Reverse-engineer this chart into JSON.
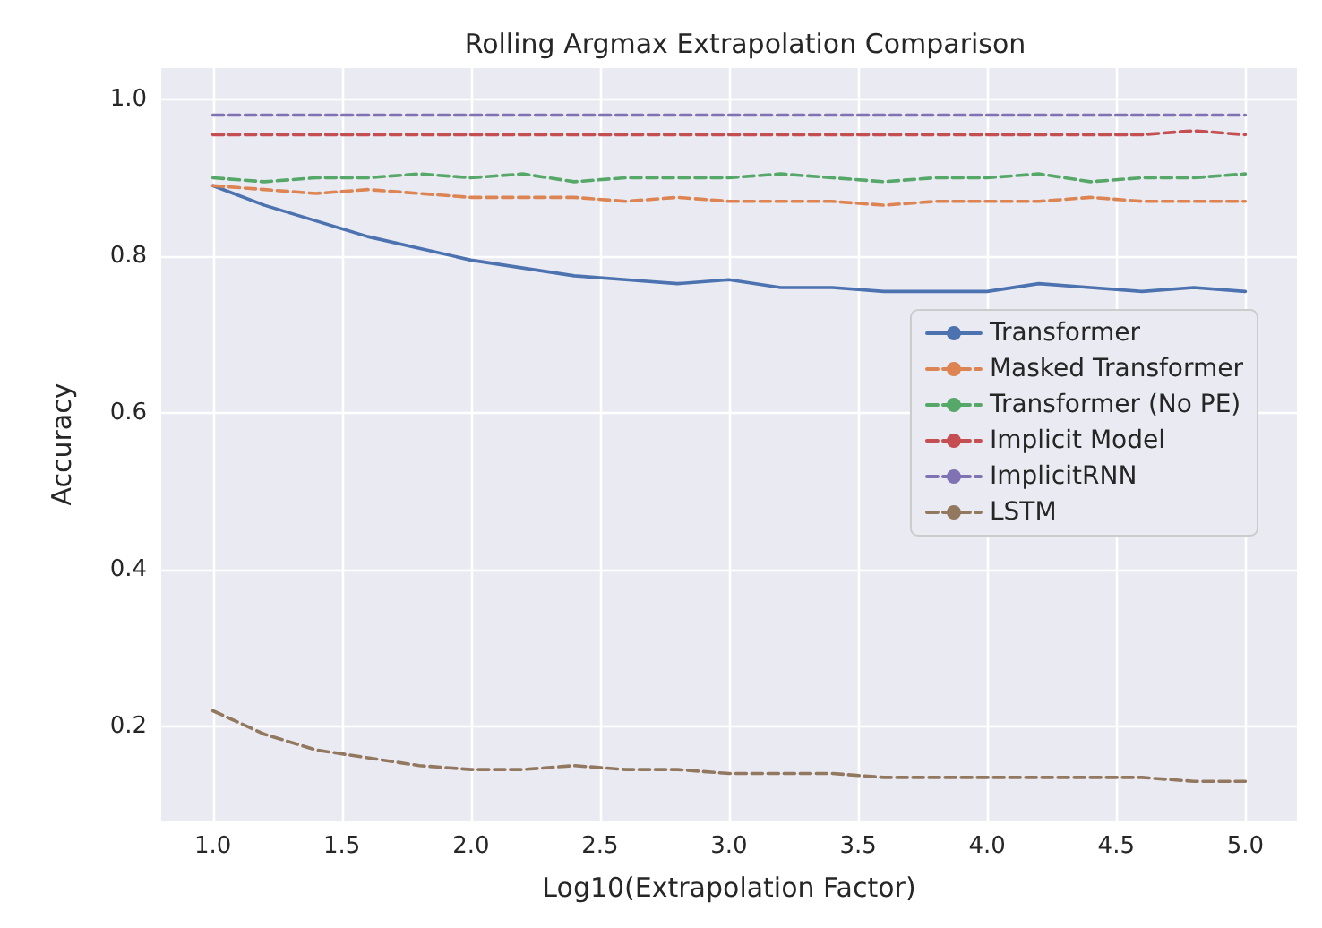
{
  "chart_data": {
    "type": "line",
    "title": "Rolling Argmax Extrapolation Comparison",
    "xlabel": "Log10(Extrapolation Factor)",
    "ylabel": "Accuracy",
    "x": [
      1.0,
      1.2,
      1.4,
      1.6,
      1.8,
      2.0,
      2.2,
      2.4,
      2.6,
      2.8,
      3.0,
      3.2,
      3.4,
      3.6,
      3.8,
      4.0,
      4.2,
      4.4,
      4.6,
      4.8,
      5.0
    ],
    "series": [
      {
        "name": "Transformer",
        "color": "#4c72b0",
        "line_style": "solid",
        "values": [
          0.89,
          0.865,
          0.845,
          0.825,
          0.81,
          0.795,
          0.785,
          0.775,
          0.77,
          0.765,
          0.77,
          0.76,
          0.76,
          0.755,
          0.755,
          0.755,
          0.765,
          0.76,
          0.755,
          0.76,
          0.755
        ]
      },
      {
        "name": "Masked Transformer",
        "color": "#dd8452",
        "line_style": "dashed",
        "values": [
          0.89,
          0.885,
          0.88,
          0.885,
          0.88,
          0.875,
          0.875,
          0.875,
          0.87,
          0.875,
          0.87,
          0.87,
          0.87,
          0.865,
          0.87,
          0.87,
          0.87,
          0.875,
          0.87,
          0.87,
          0.87
        ]
      },
      {
        "name": "Transformer (No PE)",
        "color": "#55a868",
        "line_style": "dashed",
        "values": [
          0.9,
          0.895,
          0.9,
          0.9,
          0.905,
          0.9,
          0.905,
          0.895,
          0.9,
          0.9,
          0.9,
          0.905,
          0.9,
          0.895,
          0.9,
          0.9,
          0.905,
          0.895,
          0.9,
          0.9,
          0.905
        ]
      },
      {
        "name": "Implicit Model",
        "color": "#c44e52",
        "line_style": "dashed",
        "values": [
          0.955,
          0.955,
          0.955,
          0.955,
          0.955,
          0.955,
          0.955,
          0.955,
          0.955,
          0.955,
          0.955,
          0.955,
          0.955,
          0.955,
          0.955,
          0.955,
          0.955,
          0.955,
          0.955,
          0.96,
          0.955
        ]
      },
      {
        "name": "ImplicitRNN",
        "color": "#8172b3",
        "line_style": "dashed",
        "values": [
          0.98,
          0.98,
          0.98,
          0.98,
          0.98,
          0.98,
          0.98,
          0.98,
          0.98,
          0.98,
          0.98,
          0.98,
          0.98,
          0.98,
          0.98,
          0.98,
          0.98,
          0.98,
          0.98,
          0.98,
          0.98
        ]
      },
      {
        "name": "LSTM",
        "color": "#937860",
        "line_style": "dashed",
        "values": [
          0.22,
          0.19,
          0.17,
          0.16,
          0.15,
          0.145,
          0.145,
          0.15,
          0.145,
          0.145,
          0.14,
          0.14,
          0.14,
          0.135,
          0.135,
          0.135,
          0.135,
          0.135,
          0.135,
          0.13,
          0.13
        ]
      }
    ],
    "xlim": [
      0.8,
      5.2
    ],
    "ylim": [
      0.08,
      1.04
    ],
    "xticks": [
      {
        "value": 1,
        "label": "1.0"
      },
      {
        "value": 1.5,
        "label": "1.5"
      },
      {
        "value": 2,
        "label": "2.0"
      },
      {
        "value": 2.5,
        "label": "2.5"
      },
      {
        "value": 3,
        "label": "3.0"
      },
      {
        "value": 3.5,
        "label": "3.5"
      },
      {
        "value": 4,
        "label": "4.0"
      },
      {
        "value": 4.5,
        "label": "4.5"
      },
      {
        "value": 5,
        "label": "5.0"
      }
    ],
    "yticks": [
      {
        "value": 0.2,
        "label": "0.2"
      },
      {
        "value": 0.4,
        "label": "0.4"
      },
      {
        "value": 0.6,
        "label": "0.6"
      },
      {
        "value": 0.8,
        "label": "0.8"
      },
      {
        "value": 1,
        "label": "1.0"
      }
    ],
    "grid": true,
    "legend": "right",
    "marker": "none"
  }
}
